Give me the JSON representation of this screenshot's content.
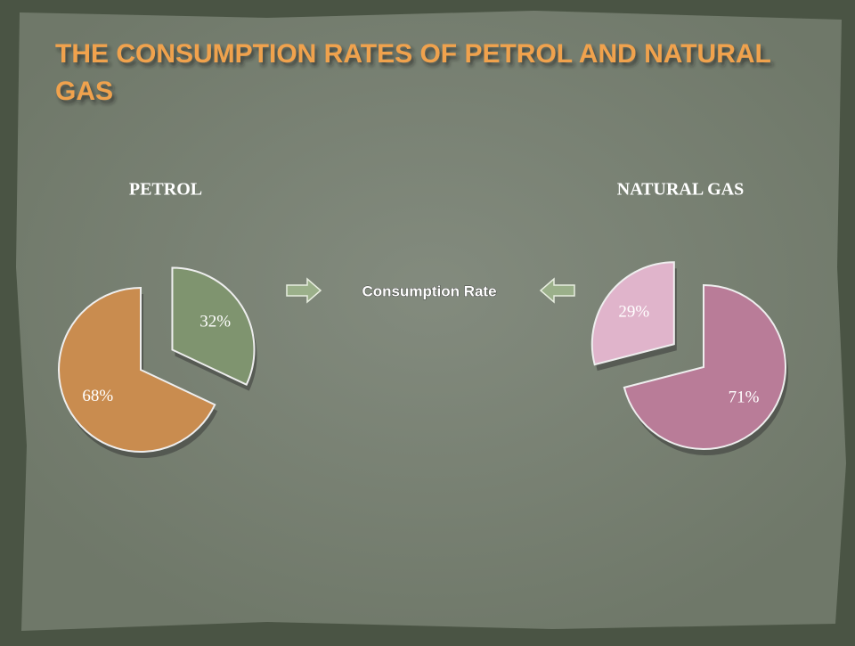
{
  "title": "THE CONSUMPTION RATES OF PETROL AND NATURAL GAS",
  "annotation": "Consumption Rate",
  "chart_data": [
    {
      "type": "pie",
      "title": "PETROL",
      "values": [
        32,
        68
      ],
      "value_labels": [
        "32%",
        "68%"
      ],
      "colors": [
        "#7f946f",
        "#c98c4f"
      ]
    },
    {
      "type": "pie",
      "title": "NATURAL GAS",
      "values": [
        29,
        71
      ],
      "value_labels": [
        "29%",
        "71%"
      ],
      "colors": [
        "#e0b4cb",
        "#b97c98"
      ]
    }
  ]
}
